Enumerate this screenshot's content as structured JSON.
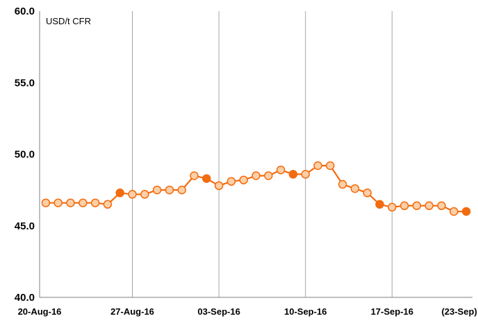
{
  "chart_data": {
    "type": "line",
    "ylabel": "USD/t CFR",
    "ylim": [
      40,
      60
    ],
    "yticks": [
      "40.0",
      "45.0",
      "50.0",
      "55.0",
      "60.0"
    ],
    "ytick_values": [
      40,
      45,
      50,
      55,
      60
    ],
    "x_tick_labels": [
      "20-Aug-16",
      "27-Aug-16",
      "03-Sep-16",
      "10-Sep-16",
      "17-Sep-16",
      "(23-Sep)"
    ],
    "x_tick_days": [
      0,
      7,
      14,
      21,
      28,
      34
    ],
    "xlim_days": [
      0,
      35
    ],
    "grid": "vertical",
    "line_color": "#f26b0f",
    "marker_fill_hollow": "#fccfa6",
    "marker_fill_solid": "#f26b0f",
    "series": [
      {
        "x": [
          "20-Aug-16",
          "21-Aug-16",
          "22-Aug-16",
          "23-Aug-16",
          "24-Aug-16",
          "25-Aug-16",
          "26-Aug-16",
          "27-Aug-16",
          "28-Aug-16",
          "29-Aug-16",
          "30-Aug-16",
          "31-Aug-16",
          "01-Sep-16",
          "02-Sep-16",
          "03-Sep-16",
          "04-Sep-16",
          "05-Sep-16",
          "06-Sep-16",
          "07-Sep-16",
          "08-Sep-16",
          "09-Sep-16",
          "10-Sep-16",
          "11-Sep-16",
          "12-Sep-16",
          "13-Sep-16",
          "14-Sep-16",
          "15-Sep-16",
          "16-Sep-16",
          "17-Sep-16",
          "18-Sep-16",
          "19-Sep-16",
          "20-Sep-16",
          "21-Sep-16",
          "22-Sep-16",
          "23-Sep-16"
        ],
        "values": [
          46.6,
          46.6,
          46.6,
          46.6,
          46.6,
          46.5,
          47.3,
          47.2,
          47.2,
          47.5,
          47.5,
          47.5,
          48.5,
          48.3,
          47.8,
          48.1,
          48.2,
          48.5,
          48.5,
          48.9,
          48.6,
          48.6,
          49.2,
          49.2,
          47.9,
          47.6,
          47.3,
          46.5,
          46.3,
          46.4,
          46.4,
          46.4,
          46.4,
          46.0,
          46.0
        ],
        "filled_marker": [
          false,
          false,
          false,
          false,
          false,
          false,
          true,
          false,
          false,
          false,
          false,
          false,
          false,
          true,
          false,
          false,
          false,
          false,
          false,
          false,
          true,
          false,
          false,
          false,
          false,
          false,
          false,
          true,
          false,
          false,
          false,
          false,
          false,
          false,
          true
        ]
      }
    ]
  }
}
